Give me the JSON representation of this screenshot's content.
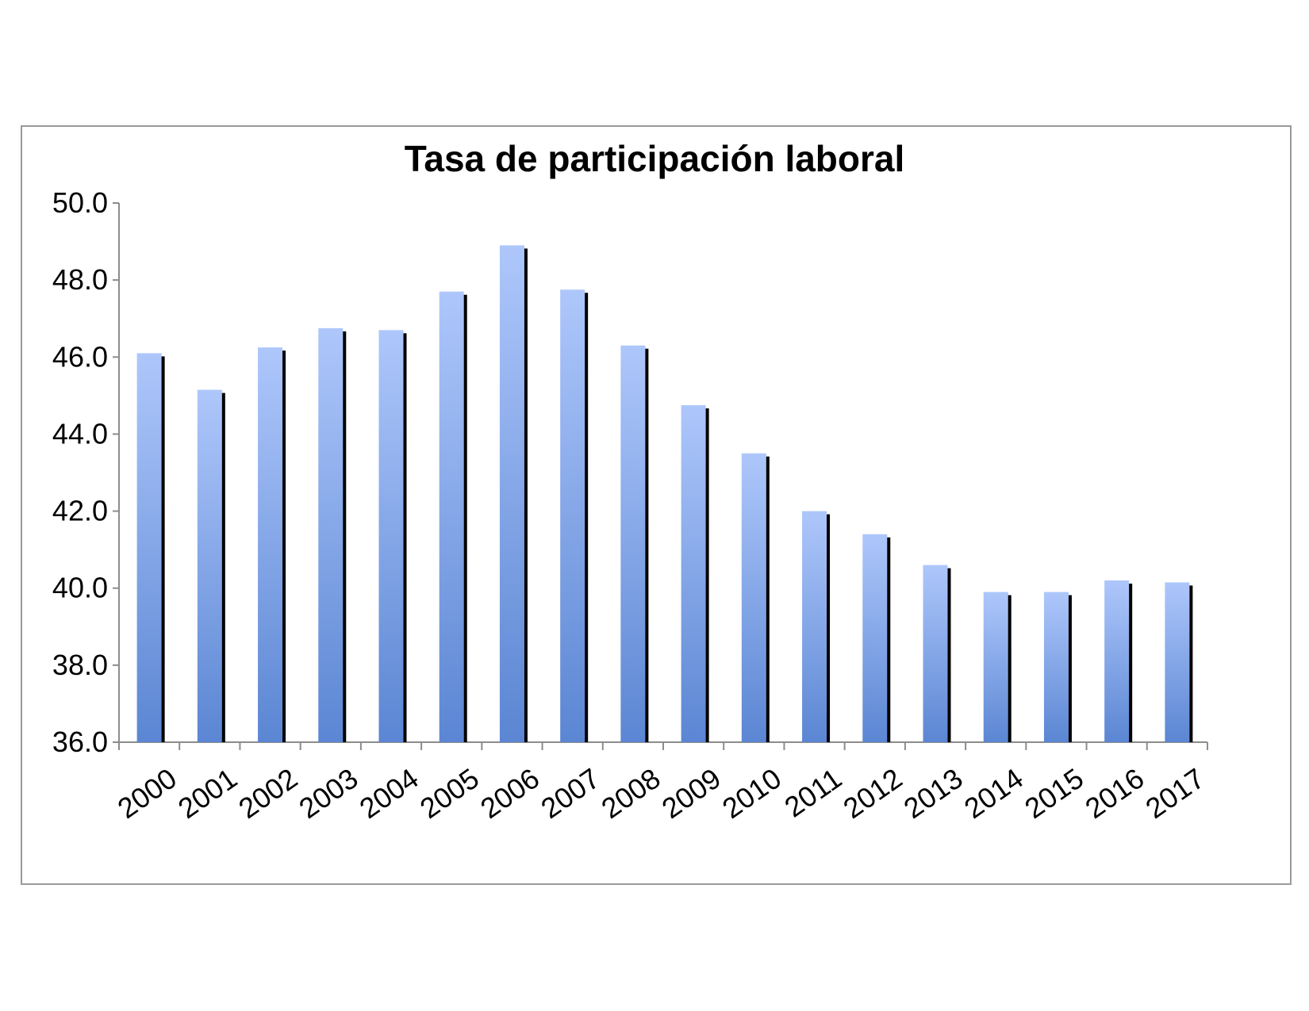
{
  "chart_data": {
    "type": "bar",
    "title": "Tasa de participación laboral",
    "xlabel": "",
    "ylabel": "",
    "categories": [
      "2000",
      "2001",
      "2002",
      "2003",
      "2004",
      "2005",
      "2006",
      "2007",
      "2008",
      "2009",
      "2010",
      "2011",
      "2012",
      "2013",
      "2014",
      "2015",
      "2016",
      "2017"
    ],
    "values": [
      46.1,
      45.15,
      46.25,
      46.75,
      46.7,
      47.7,
      48.9,
      47.75,
      46.3,
      44.75,
      43.5,
      42.0,
      41.4,
      40.6,
      39.9,
      39.9,
      40.2,
      40.15
    ],
    "ylim": [
      36.0,
      50.0
    ],
    "yticks": [
      "36.0",
      "38.0",
      "40.0",
      "42.0",
      "44.0",
      "46.0",
      "48.0",
      "50.0"
    ],
    "grid": false,
    "legend": "none",
    "colors": {
      "bar_top": "#aec7fb",
      "bar_bottom": "#5b86d3",
      "bar_shadow": "#000000",
      "axis": "#8c8c8c",
      "frame": "#9a9a9a"
    }
  }
}
